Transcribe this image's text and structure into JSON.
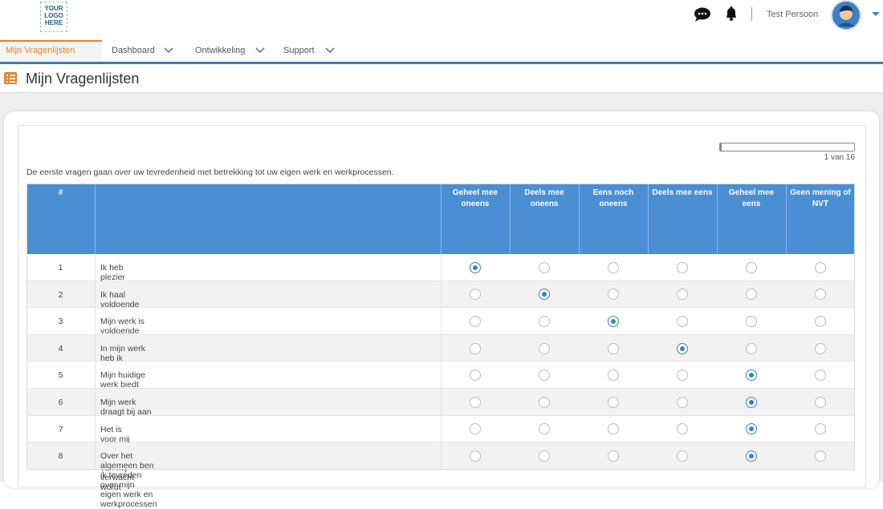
{
  "logo": [
    "YOUR",
    "LOGO",
    "HERE"
  ],
  "header": {
    "user": "Test Persoon"
  },
  "nav": [
    "Mijn Vragenlijsten",
    "Dashboard",
    "Ontwikkeling",
    "Support"
  ],
  "page_title": "Mijn Vragenlijsten",
  "progress": "1 van 16",
  "intro": "De eerste vragen gaan over uw tevredenheid met betrekking tot uw eigen werk en werkprocessen.",
  "table": {
    "columns": [
      "#",
      "Geheel mee oneens",
      "Deels mee oneens",
      "Eens noch oneens",
      "Deels mee eens",
      "Geheel mee eens",
      "Geen mening of NVT"
    ],
    "rows": [
      [
        1,
        "Ik heb plezier in mijn werk"
      ],
      [
        2,
        "Ik haal voldoende uitdaging uit mijn werk"
      ],
      [
        3,
        "Mijn werk is voldoende afwisselend"
      ],
      [
        4,
        "In mijn werk heb ik voldoende vrijheid en zelfstandigheid"
      ],
      [
        5,
        "Mijn huidige werk biedt voldoende mogelijkheden voor persoonlijke groei en ontwikkeling"
      ],
      [
        6,
        "Mijn werk draagt bij aan de doelstellingen van de organisatie"
      ],
      [
        7,
        "Het is voor mij duidelijk wat er van mij verwacht wordt"
      ],
      [
        8,
        "Over het algemeen ben ik tevreden over mijn eigen werk en werkprocessen"
      ]
    ],
    "selected": [
      0,
      1,
      2,
      3,
      4,
      4,
      4,
      4
    ]
  }
}
